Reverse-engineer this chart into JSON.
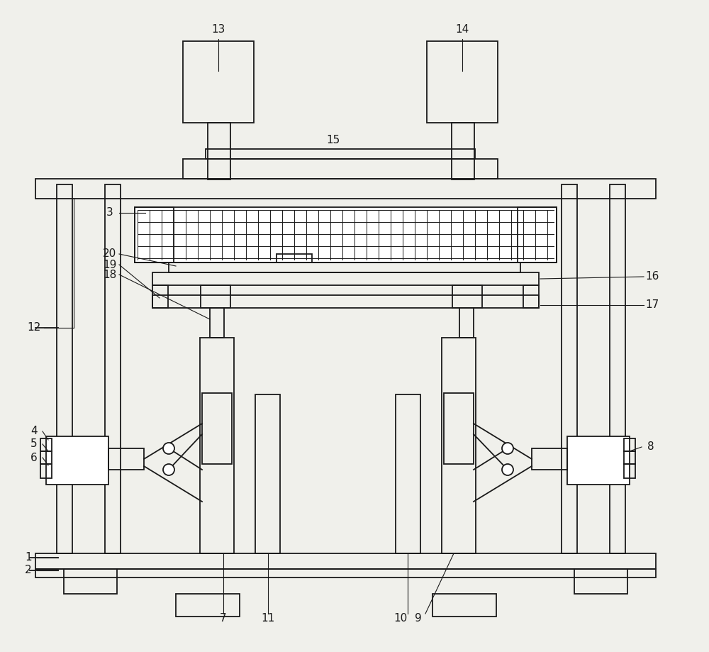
{
  "bg_color": "#f0f0eb",
  "line_color": "#1a1a1a",
  "lw": 1.3,
  "fig_width": 10.0,
  "fig_height": 9.19
}
